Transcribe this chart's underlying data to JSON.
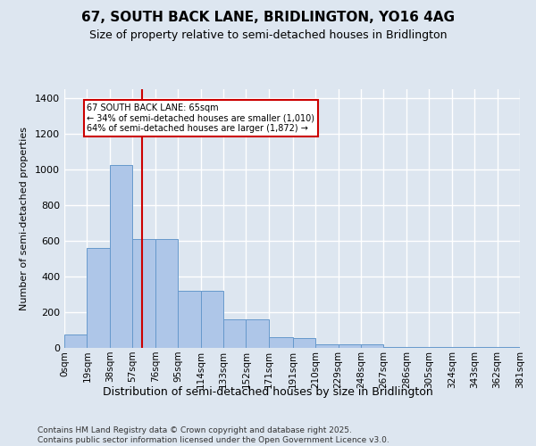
{
  "title1": "67, SOUTH BACK LANE, BRIDLINGTON, YO16 4AG",
  "title2": "Size of property relative to semi-detached houses in Bridlington",
  "xlabel": "Distribution of semi-detached houses by size in Bridlington",
  "ylabel": "Number of semi-detached properties",
  "footer1": "Contains HM Land Registry data © Crown copyright and database right 2025.",
  "footer2": "Contains public sector information licensed under the Open Government Licence v3.0.",
  "annotation_line1": "67 SOUTH BACK LANE: 65sqm",
  "annotation_line2": "← 34% of semi-detached houses are smaller (1,010)",
  "annotation_line3": "64% of semi-detached houses are larger (1,872) →",
  "bin_edges": [
    0,
    19,
    38,
    57,
    76,
    95,
    114,
    133,
    152,
    171,
    191,
    210,
    229,
    248,
    267,
    286,
    305,
    324,
    343,
    362,
    381
  ],
  "bin_labels": [
    "0sqm",
    "19sqm",
    "38sqm",
    "57sqm",
    "76sqm",
    "95sqm",
    "114sqm",
    "133sqm",
    "152sqm",
    "171sqm",
    "191sqm",
    "210sqm",
    "229sqm",
    "248sqm",
    "267sqm",
    "286sqm",
    "305sqm",
    "324sqm",
    "343sqm",
    "362sqm",
    "381sqm"
  ],
  "counts": [
    75,
    560,
    1025,
    610,
    610,
    320,
    320,
    160,
    160,
    60,
    55,
    20,
    20,
    20,
    5,
    5,
    5,
    5,
    5,
    5
  ],
  "bar_color": "#aec6e8",
  "bar_edge_color": "#6699cc",
  "vline_color": "#cc0000",
  "vline_x": 65,
  "box_color": "#cc0000",
  "background_color": "#dde6f0",
  "grid_color": "#ffffff",
  "ylim": [
    0,
    1450
  ],
  "yticks": [
    0,
    200,
    400,
    600,
    800,
    1000,
    1200,
    1400
  ]
}
